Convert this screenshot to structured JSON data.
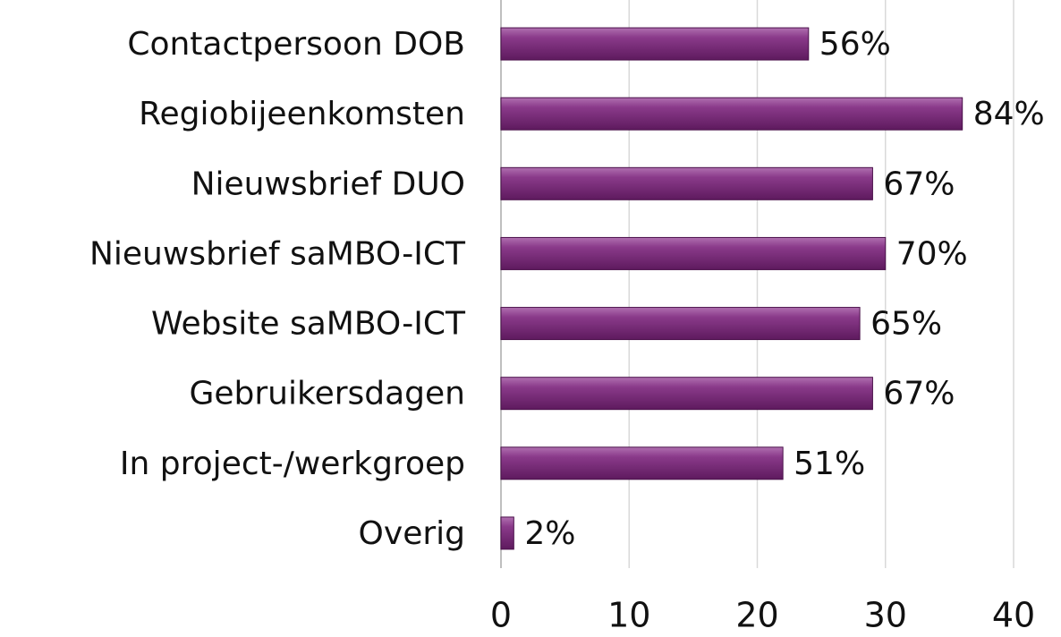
{
  "chart_data": {
    "type": "bar",
    "orientation": "horizontal",
    "categories": [
      "Contactpersoon DOB",
      "Regiobijeenkomsten",
      "Nieuwsbrief DUO",
      "Nieuwsbrief saMBO-ICT",
      "Website saMBO-ICT",
      "Gebruikersdagen",
      "In project-/werkgroep",
      "Overig"
    ],
    "values": [
      24,
      36,
      29,
      30,
      28,
      29,
      22,
      1
    ],
    "value_labels": [
      "56%",
      "84%",
      "67%",
      "70%",
      "65%",
      "67%",
      "51%",
      "2%"
    ],
    "color": "#7b2a7b",
    "xlim": [
      0,
      40
    ],
    "xticks": [
      0,
      10,
      20,
      30,
      40
    ],
    "grid": true
  }
}
